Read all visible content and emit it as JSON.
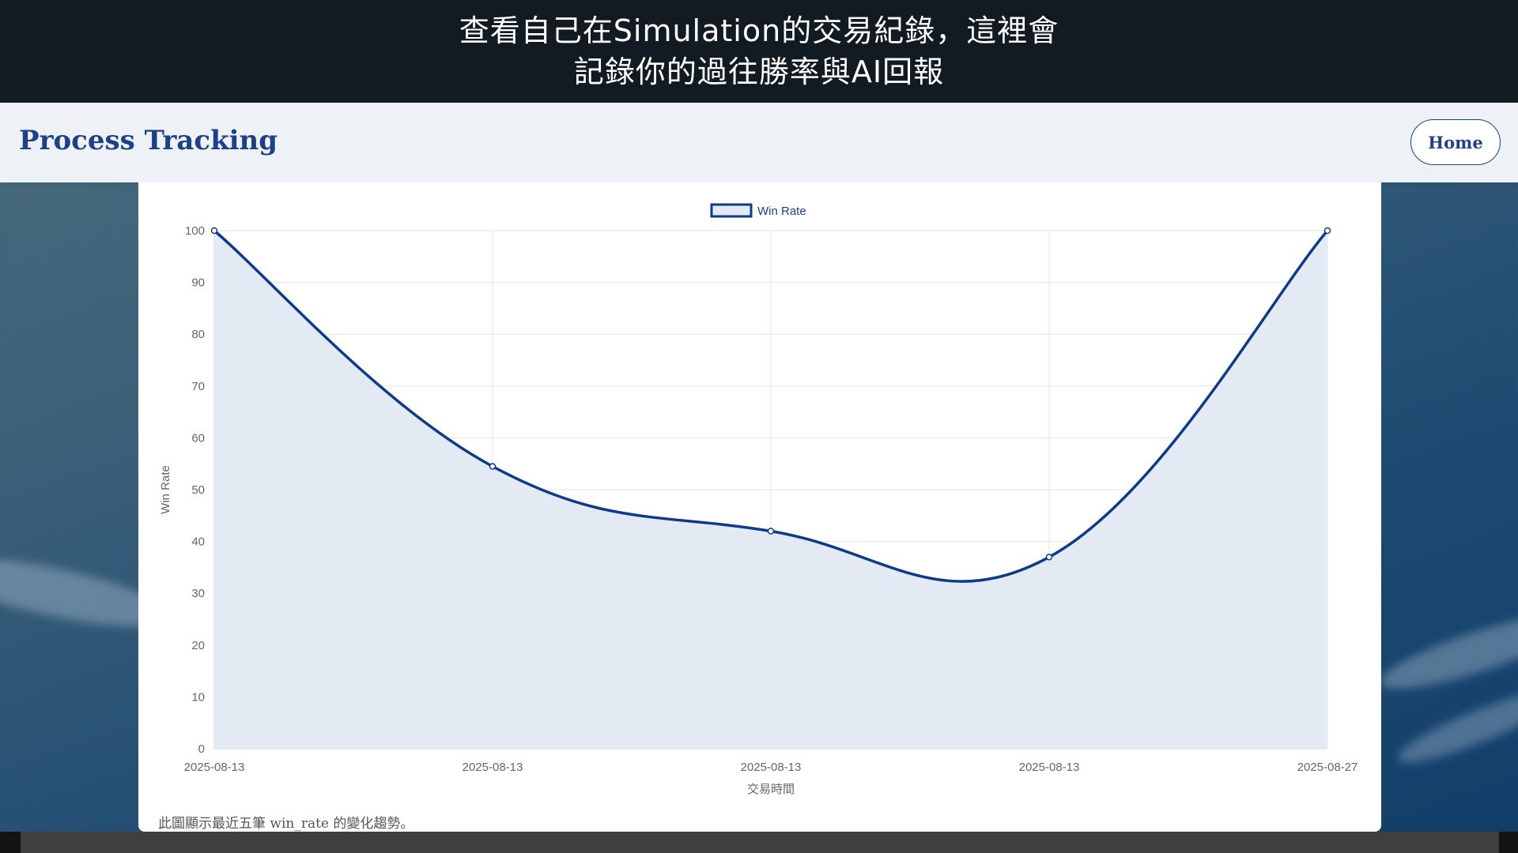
{
  "caption": {
    "line1": "查看自己在Simulation的交易紀錄，這裡會",
    "line2": "記錄你的過往勝率與AI回報"
  },
  "header": {
    "title": "Process Tracking",
    "home_label": "Home"
  },
  "colors": {
    "brand": "#1d4086",
    "series_line": "#0e3a8a",
    "series_fill": "#e4eaf4",
    "grid": "#e6e6e6"
  },
  "chart_data": {
    "type": "line",
    "categories": [
      "2025-08-13",
      "2025-08-13",
      "2025-08-13",
      "2025-08-13",
      "2025-08-27"
    ],
    "series": [
      {
        "name": "Win Rate",
        "values": [
          100,
          54.5,
          42,
          37,
          100
        ]
      }
    ],
    "xlabel": "交易時間",
    "ylabel": "Win Rate",
    "ylim": [
      0,
      100
    ],
    "yticks": [
      0,
      10,
      20,
      30,
      40,
      50,
      60,
      70,
      80,
      90,
      100
    ],
    "fill": true,
    "smooth": true,
    "grid": true,
    "legend": "top-center"
  },
  "note": "此圖顯示最近五筆 win_rate 的變化趨勢。"
}
